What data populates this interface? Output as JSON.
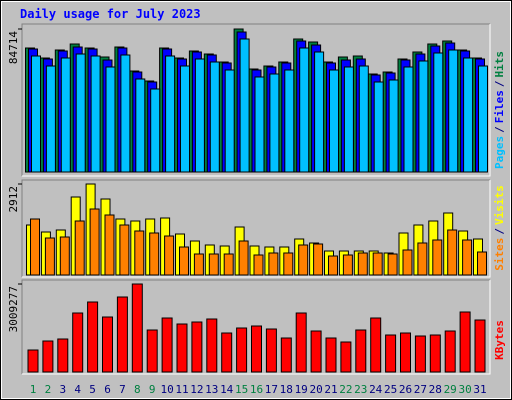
{
  "title": "Daily usage for July 2023",
  "separator": "/",
  "chart_data": [
    {
      "type": "bar",
      "ylim": [
        0,
        84714
      ],
      "yticks": [
        84714
      ],
      "series": [
        {
          "name": "Hits",
          "color": "#008040",
          "values": [
            73459,
            67535,
            72274,
            75828,
            73459,
            68127,
            74051,
            59833,
            53909,
            73459,
            67535,
            71682,
            69904,
            65165,
            84714,
            61018,
            62795,
            65165,
            78791,
            77013,
            65165,
            68127,
            68720,
            58056,
            59241,
            66942,
            71089,
            75828,
            77606,
            72274,
            67535
          ]
        },
        {
          "name": "Files",
          "color": "#0000FF",
          "values": [
            72866,
            66942,
            71682,
            74051,
            72866,
            66350,
            73459,
            59241,
            53317,
            72866,
            66942,
            71089,
            69312,
            64573,
            82937,
            60426,
            62203,
            64573,
            77606,
            75236,
            64573,
            66350,
            66942,
            57464,
            58649,
            66350,
            69904,
            74644,
            76421,
            71682,
            66942
          ]
        },
        {
          "name": "Pages",
          "color": "#00C0FF",
          "values": [
            68720,
            62795,
            67535,
            69904,
            68720,
            62203,
            69312,
            55094,
            49170,
            68720,
            62795,
            66942,
            65165,
            60426,
            78791,
            56279,
            58056,
            60426,
            73459,
            71089,
            60426,
            62203,
            62795,
            53317,
            54502,
            62203,
            65758,
            70497,
            72274,
            67535,
            62795
          ]
        }
      ]
    },
    {
      "type": "bar",
      "ylim": [
        0,
        2912
      ],
      "yticks": [
        2912
      ],
      "series": [
        {
          "name": "Visits",
          "color": "#FFFF00",
          "values": [
            1600,
            1376,
            1440,
            2496,
            2912,
            2432,
            1792,
            1728,
            1792,
            1824,
            1312,
            1088,
            960,
            928,
            1536,
            928,
            896,
            896,
            1152,
            1024,
            768,
            768,
            768,
            768,
            704,
            1344,
            1600,
            1728,
            1984,
            1408,
            1152
          ]
        },
        {
          "name": "Sites",
          "color": "#FF8000",
          "values": [
            1792,
            1184,
            1216,
            1728,
            2112,
            1920,
            1600,
            1408,
            1344,
            1248,
            896,
            672,
            672,
            672,
            1088,
            640,
            704,
            704,
            960,
            992,
            608,
            640,
            704,
            704,
            672,
            800,
            1024,
            1120,
            1440,
            1120,
            736
          ]
        }
      ]
    },
    {
      "type": "bar",
      "ylim": [
        0,
        3009277
      ],
      "yticks": [
        3009277
      ],
      "categories": [
        "1",
        "2",
        "3",
        "4",
        "5",
        "6",
        "7",
        "8",
        "9",
        "10",
        "11",
        "12",
        "13",
        "14",
        "15",
        "16",
        "17",
        "18",
        "19",
        "20",
        "21",
        "22",
        "23",
        "24",
        "25",
        "26",
        "27",
        "28",
        "29",
        "30",
        "31"
      ],
      "label_colors": [
        "#008040",
        "#008040",
        "#000080",
        "#000080",
        "#000080",
        "#000080",
        "#000080",
        "#008040",
        "#008040",
        "#000080",
        "#000080",
        "#000080",
        "#000080",
        "#000080",
        "#008040",
        "#008040",
        "#000080",
        "#000080",
        "#000080",
        "#000080",
        "#000080",
        "#008040",
        "#008040",
        "#000080",
        "#000080",
        "#000080",
        "#000080",
        "#000080",
        "#008040",
        "#008040",
        "#000080"
      ],
      "series": [
        {
          "name": "KBytes",
          "color": "#FF0000",
          "values": [
            752312,
            1060076,
            1128468,
            2017564,
            2393720,
            1880780,
            2564700,
            3009277,
            1436232,
            1846584,
            1641408,
            1709800,
            1812388,
            1333644,
            1504624,
            1573016,
            1470428,
            1162664,
            2017564,
            1402036,
            1162664,
            1025880,
            1436232,
            1846584,
            1265252,
            1333644,
            1231056,
            1265252,
            1402036,
            2051760,
            1778192
          ]
        }
      ]
    }
  ]
}
